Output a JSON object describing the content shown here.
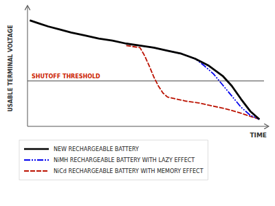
{
  "chart_data": {
    "type": "line",
    "xlabel": "TIME",
    "ylabel": "USABLE  TERMINAL VOLTAGE",
    "xlim": [
      -0.01,
      1.02
    ],
    "ylim": [
      -0.05,
      1.1
    ],
    "tick_labels": false,
    "grid": false,
    "legend": "bottom",
    "series": [
      {
        "name": "NEW RECHARGEABLE BATTERY",
        "color": "#000000",
        "line_style": "solid",
        "x": [
          0.0,
          0.04,
          0.08,
          0.13,
          0.18,
          0.24,
          0.3,
          0.36,
          0.42,
          0.48,
          0.54,
          0.6,
          0.66,
          0.72,
          0.78,
          0.84,
          0.88,
          0.92,
          0.96,
          1.0
        ],
        "values": [
          1.0,
          0.97,
          0.94,
          0.91,
          0.88,
          0.85,
          0.82,
          0.8,
          0.77,
          0.75,
          0.73,
          0.7,
          0.67,
          0.62,
          0.55,
          0.45,
          0.35,
          0.22,
          0.1,
          0.02
        ]
      },
      {
        "name": "NiMH RECHARGEABLE BATTERY WITH LAZY EFFECT",
        "color": "#0000ee",
        "line_style": "dashdotdot",
        "x": [
          0.42,
          0.48,
          0.54,
          0.6,
          0.66,
          0.72,
          0.76,
          0.8,
          0.84,
          0.88,
          0.92,
          0.96,
          1.0
        ],
        "values": [
          0.77,
          0.75,
          0.73,
          0.7,
          0.67,
          0.62,
          0.55,
          0.47,
          0.36,
          0.25,
          0.14,
          0.06,
          0.02
        ]
      },
      {
        "name": "NiCd RECHARGEABLE BATTERY WITH MEMORY EFFECT",
        "color": "#bb1100",
        "line_style": "dashed",
        "x": [
          0.42,
          0.48,
          0.5,
          0.52,
          0.54,
          0.56,
          0.58,
          0.6,
          0.64,
          0.68,
          0.74,
          0.8,
          0.86,
          0.92,
          0.96,
          1.0
        ],
        "values": [
          0.75,
          0.73,
          0.65,
          0.55,
          0.44,
          0.35,
          0.28,
          0.24,
          0.22,
          0.2,
          0.18,
          0.15,
          0.12,
          0.08,
          0.05,
          0.02
        ]
      }
    ],
    "annotations": [
      {
        "text": "SHUTOFF THRESHOLD",
        "y": 0.4,
        "color": "#cc2200"
      }
    ]
  }
}
